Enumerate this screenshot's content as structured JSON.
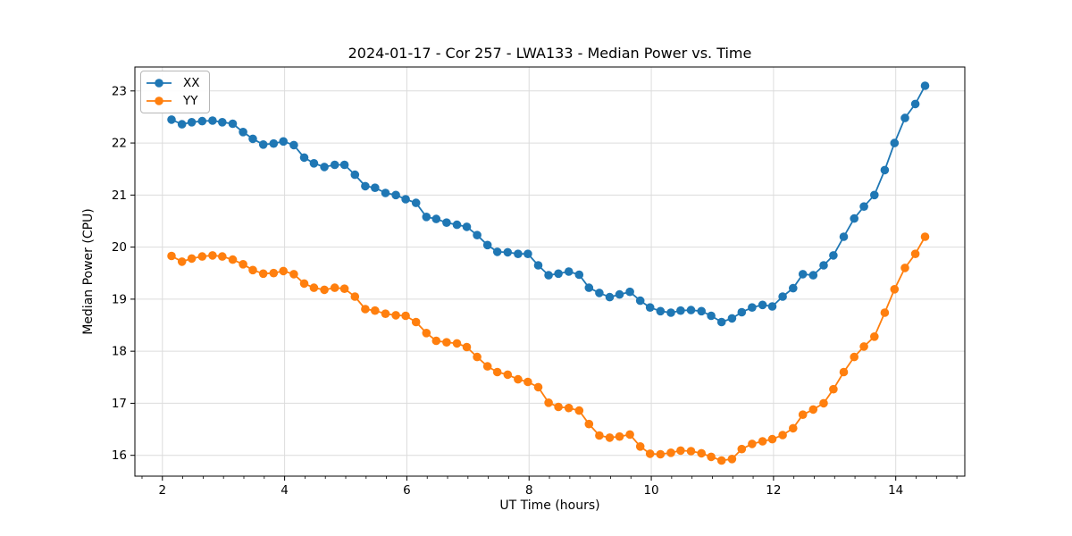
{
  "chart_data": {
    "type": "line",
    "title": "2024-01-17 - Cor 257 - LWA133 - Median Power vs. Time",
    "xlabel": "UT Time (hours)",
    "ylabel": "Median Power (CPU)",
    "xlim": [
      1.55,
      15.13
    ],
    "ylim": [
      15.6,
      23.46
    ],
    "xticks": [
      2,
      4,
      6,
      8,
      10,
      12,
      14
    ],
    "yticks": [
      16,
      17,
      18,
      19,
      20,
      21,
      22,
      23
    ],
    "x_minor_step": 0.33333,
    "grid": true,
    "grid_color": "#dcdcdc",
    "legend_position": "upper-left",
    "marker": "circle",
    "x": [
      2.15,
      2.32,
      2.48,
      2.65,
      2.82,
      2.98,
      3.15,
      3.32,
      3.48,
      3.65,
      3.82,
      3.98,
      4.15,
      4.32,
      4.48,
      4.65,
      4.82,
      4.98,
      5.15,
      5.32,
      5.48,
      5.65,
      5.82,
      5.98,
      6.15,
      6.32,
      6.48,
      6.65,
      6.82,
      6.98,
      7.15,
      7.32,
      7.48,
      7.65,
      7.82,
      7.98,
      8.15,
      8.32,
      8.48,
      8.65,
      8.82,
      8.98,
      9.15,
      9.32,
      9.48,
      9.65,
      9.82,
      9.98,
      10.15,
      10.32,
      10.48,
      10.65,
      10.82,
      10.98,
      11.15,
      11.32,
      11.48,
      11.65,
      11.82,
      11.98,
      12.15,
      12.32,
      12.48,
      12.65,
      12.82,
      12.98,
      13.15,
      13.32,
      13.48,
      13.65,
      13.82,
      13.98,
      14.15,
      14.32,
      14.48
    ],
    "series": [
      {
        "name": "XX",
        "color": "#1f77b4",
        "values": [
          22.45,
          22.36,
          22.4,
          22.42,
          22.43,
          22.4,
          22.37,
          22.21,
          22.08,
          21.97,
          21.99,
          22.03,
          21.96,
          21.72,
          21.61,
          21.54,
          21.58,
          21.58,
          21.39,
          21.17,
          21.14,
          21.04,
          21.0,
          20.92,
          20.85,
          20.58,
          20.54,
          20.47,
          20.43,
          20.39,
          20.23,
          20.04,
          19.91,
          19.9,
          19.87,
          19.87,
          19.65,
          19.46,
          19.49,
          19.53,
          19.47,
          19.22,
          19.12,
          19.04,
          19.09,
          19.14,
          18.97,
          18.84,
          18.77,
          18.74,
          18.78,
          18.79,
          18.77,
          18.68,
          18.56,
          18.63,
          18.75,
          18.84,
          18.89,
          18.86,
          19.05,
          19.21,
          19.48,
          19.46,
          19.65,
          19.84,
          20.2,
          20.55,
          20.78,
          21.0,
          21.48,
          22.0,
          22.48,
          22.75,
          23.1
        ]
      },
      {
        "name": "YY",
        "color": "#ff7f0e",
        "values": [
          19.83,
          19.72,
          19.78,
          19.82,
          19.84,
          19.82,
          19.76,
          19.67,
          19.56,
          19.49,
          19.5,
          19.54,
          19.48,
          19.3,
          19.22,
          19.18,
          19.22,
          19.2,
          19.05,
          18.81,
          18.78,
          18.72,
          18.69,
          18.68,
          18.56,
          18.35,
          18.2,
          18.17,
          18.15,
          18.08,
          17.89,
          17.71,
          17.6,
          17.55,
          17.46,
          17.41,
          17.31,
          17.01,
          16.93,
          16.91,
          16.86,
          16.6,
          16.38,
          16.34,
          16.36,
          16.4,
          16.17,
          16.03,
          16.02,
          16.05,
          16.09,
          16.08,
          16.04,
          15.97,
          15.9,
          15.93,
          16.12,
          16.22,
          16.27,
          16.31,
          16.39,
          16.52,
          16.78,
          16.88,
          17.0,
          17.27,
          17.6,
          17.89,
          18.09,
          18.28,
          18.74,
          19.19,
          19.6,
          19.87,
          20.2
        ]
      }
    ]
  }
}
